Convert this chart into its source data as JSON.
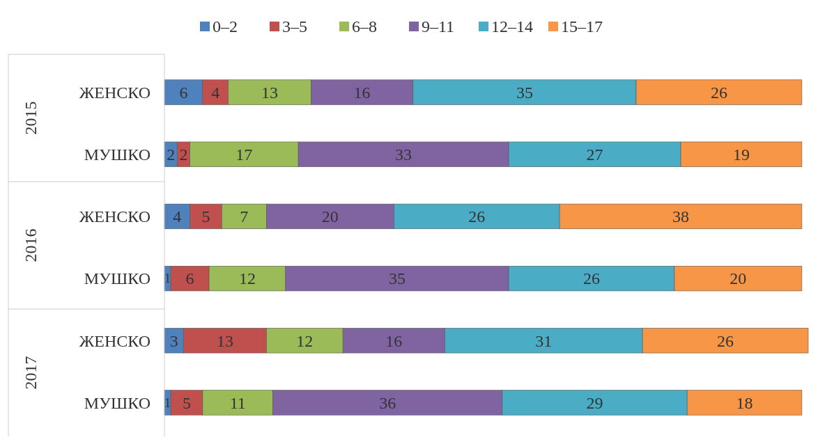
{
  "chart_data": {
    "type": "bar",
    "orientation": "horizontal",
    "stacked": true,
    "data_labels": true,
    "legend": "top",
    "tick_labels": "y",
    "xlim": [
      0,
      101
    ],
    "categories": [
      "ЖЕНСКО",
      "МУШКО",
      "ЖЕНСКО",
      "МУШКО",
      "ЖЕНСКО",
      "МУШКО"
    ],
    "annotations": [
      "2015",
      "2016",
      "2017"
    ],
    "series": [
      {
        "name": "0–2",
        "color": "#4f81bd",
        "values": [
          6,
          2,
          4,
          1,
          3,
          1
        ]
      },
      {
        "name": "3–5",
        "color": "#c0504d",
        "values": [
          4,
          2,
          5,
          6,
          13,
          5
        ]
      },
      {
        "name": "6–8",
        "color": "#9bbb59",
        "values": [
          13,
          17,
          7,
          12,
          12,
          11
        ]
      },
      {
        "name": "9–11",
        "color": "#8064a2",
        "values": [
          16,
          33,
          20,
          35,
          16,
          36
        ]
      },
      {
        "name": "12–14",
        "color": "#4bacc6",
        "values": [
          35,
          27,
          26,
          26,
          31,
          29
        ]
      },
      {
        "name": "15–17",
        "color": "#f79646",
        "values": [
          26,
          19,
          38,
          20,
          26,
          18
        ]
      }
    ]
  }
}
